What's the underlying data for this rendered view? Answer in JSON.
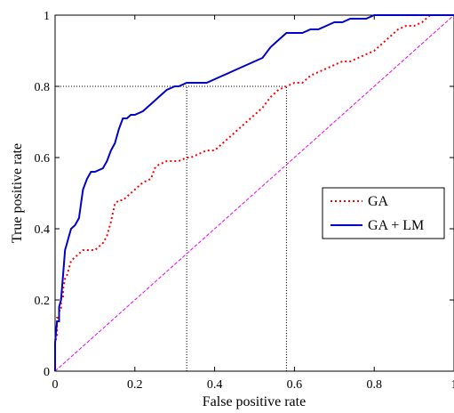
{
  "chart_data": {
    "type": "line",
    "title": "",
    "xlabel": "False positive rate",
    "ylabel": "True positive rate",
    "xlim": [
      0,
      1
    ],
    "ylim": [
      0,
      1
    ],
    "xticks": [
      0,
      0.2,
      0.4,
      0.6,
      0.8,
      1
    ],
    "yticks": [
      0,
      0.2,
      0.4,
      0.6,
      0.8,
      1
    ],
    "xtick_labels": [
      "0",
      "0.2",
      "0.4",
      "0.6",
      "0.8",
      "1"
    ],
    "ytick_labels": [
      "0",
      "0.2",
      "0.4",
      "0.6",
      "0.8",
      "1"
    ],
    "grid": false,
    "legend_position": "right",
    "series": [
      {
        "name": "GA",
        "style": "dotted",
        "color": "#ff0000",
        "x": [
          0,
          0,
          0.005,
          0.005,
          0.01,
          0.01,
          0.015,
          0.015,
          0.02,
          0.02,
          0.025,
          0.03,
          0.035,
          0.04,
          0.05,
          0.06,
          0.07,
          0.08,
          0.1,
          0.12,
          0.13,
          0.14,
          0.15,
          0.16,
          0.17,
          0.18,
          0.2,
          0.22,
          0.24,
          0.25,
          0.26,
          0.28,
          0.29,
          0.3,
          0.31,
          0.33,
          0.34,
          0.36,
          0.38,
          0.4,
          0.42,
          0.44,
          0.46,
          0.48,
          0.5,
          0.52,
          0.54,
          0.56,
          0.58,
          0.6,
          0.62,
          0.64,
          0.66,
          0.68,
          0.7,
          0.72,
          0.74,
          0.76,
          0.78,
          0.8,
          0.82,
          0.84,
          0.86,
          0.88,
          0.9,
          0.92,
          0.94,
          1
        ],
        "y": [
          0,
          0.08,
          0.1,
          0.15,
          0.15,
          0.17,
          0.17,
          0.21,
          0.21,
          0.23,
          0.26,
          0.27,
          0.29,
          0.31,
          0.32,
          0.33,
          0.34,
          0.34,
          0.34,
          0.36,
          0.38,
          0.42,
          0.47,
          0.48,
          0.48,
          0.49,
          0.51,
          0.53,
          0.54,
          0.57,
          0.58,
          0.59,
          0.59,
          0.59,
          0.59,
          0.6,
          0.6,
          0.61,
          0.62,
          0.62,
          0.64,
          0.66,
          0.68,
          0.7,
          0.72,
          0.74,
          0.77,
          0.79,
          0.8,
          0.81,
          0.81,
          0.83,
          0.84,
          0.85,
          0.86,
          0.87,
          0.87,
          0.88,
          0.89,
          0.9,
          0.92,
          0.94,
          0.96,
          0.97,
          0.97,
          0.98,
          1,
          1
        ]
      },
      {
        "name": "GA + LM",
        "style": "solid",
        "color": "#0000cc",
        "x": [
          0,
          0,
          0.005,
          0.01,
          0.01,
          0.015,
          0.02,
          0.025,
          0.03,
          0.035,
          0.04,
          0.05,
          0.06,
          0.07,
          0.08,
          0.09,
          0.1,
          0.12,
          0.13,
          0.14,
          0.15,
          0.16,
          0.17,
          0.18,
          0.19,
          0.2,
          0.22,
          0.24,
          0.25,
          0.26,
          0.28,
          0.3,
          0.31,
          0.33,
          0.35,
          0.38,
          0.4,
          0.42,
          0.44,
          0.46,
          0.48,
          0.5,
          0.52,
          0.54,
          0.56,
          0.58,
          0.6,
          0.62,
          0.64,
          0.66,
          0.68,
          0.7,
          0.72,
          0.74,
          0.76,
          0.78,
          0.8,
          0.82,
          0.84,
          0.86,
          1
        ],
        "y": [
          0,
          0.08,
          0.14,
          0.14,
          0.18,
          0.2,
          0.27,
          0.34,
          0.36,
          0.38,
          0.4,
          0.41,
          0.43,
          0.51,
          0.54,
          0.56,
          0.56,
          0.57,
          0.59,
          0.62,
          0.64,
          0.68,
          0.71,
          0.71,
          0.72,
          0.72,
          0.73,
          0.75,
          0.76,
          0.77,
          0.79,
          0.8,
          0.8,
          0.81,
          0.81,
          0.81,
          0.82,
          0.83,
          0.84,
          0.85,
          0.86,
          0.87,
          0.88,
          0.91,
          0.93,
          0.95,
          0.95,
          0.95,
          0.96,
          0.96,
          0.97,
          0.98,
          0.98,
          0.99,
          0.99,
          0.99,
          1,
          1,
          1,
          1,
          1
        ]
      }
    ],
    "reference_line": {
      "color": "#ee00ee",
      "x": [
        0,
        1
      ],
      "y": [
        0,
        1
      ]
    },
    "annotations": [
      {
        "kind": "dotted-guide",
        "color": "#000000",
        "x": [
          0,
          0.58
        ],
        "y": [
          0.8,
          0.8
        ]
      },
      {
        "kind": "dotted-guide",
        "color": "#000000",
        "x": [
          0.33,
          0.33
        ],
        "y": [
          0,
          0.8
        ]
      },
      {
        "kind": "dotted-guide",
        "color": "#000000",
        "x": [
          0.58,
          0.58
        ],
        "y": [
          0,
          0.8
        ]
      }
    ]
  }
}
